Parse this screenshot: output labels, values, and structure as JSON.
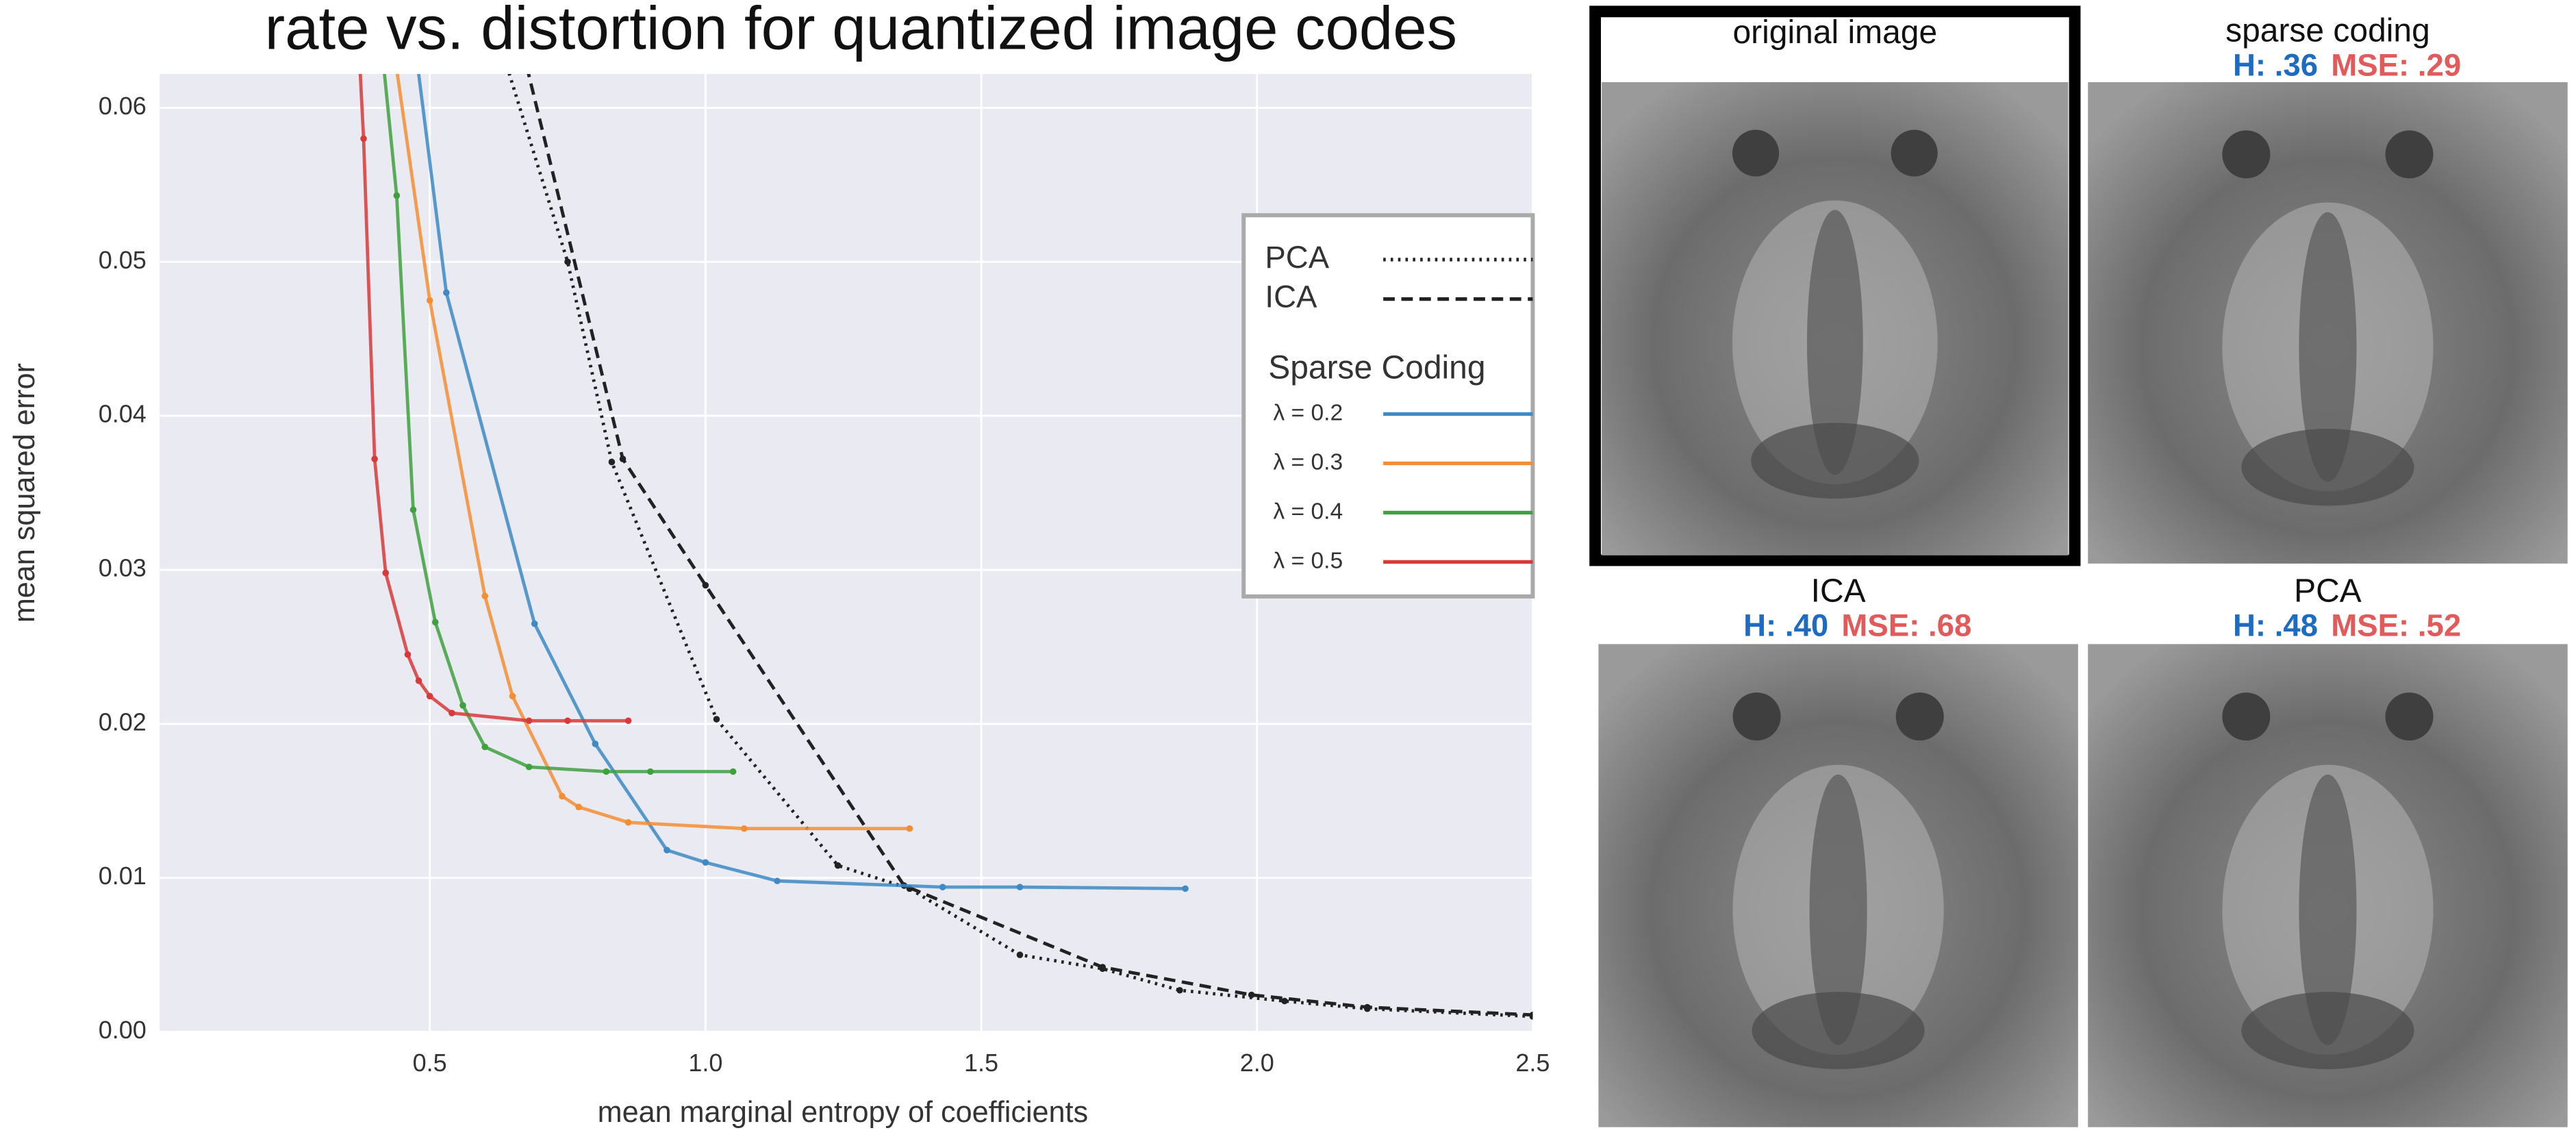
{
  "chart_data": {
    "type": "line",
    "title": "rate vs. distortion for quantized image codes",
    "xlabel": "mean marginal entropy of coefficients",
    "ylabel": "mean squared error",
    "xlim": [
      0.01,
      2.5
    ],
    "ylim": [
      0,
      0.0622
    ],
    "xticks": [
      0.5,
      {
        "value": 1,
        "label": "1.0"
      },
      1.5,
      {
        "value": 2,
        "label": "2.0"
      },
      2.5
    ],
    "yticks": [
      {
        "value": 0,
        "label": "0.00"
      },
      0.01,
      0.02,
      0.03,
      0.04,
      0.05,
      0.06
    ],
    "grid": true,
    "background": "#eaeaf2",
    "legend": "right",
    "legend_subtitle": "Sparse Coding",
    "series": [
      {
        "name": "PCA",
        "color": "#222222",
        "style": "dotted",
        "x": [
          0.62,
          0.75,
          0.83,
          1.02,
          1.24,
          1.37,
          1.57,
          1.72,
          1.86,
          2.05,
          2.2,
          2.5
        ],
        "values": [
          0.065,
          0.05,
          0.037,
          0.0203,
          0.0108,
          0.0093,
          0.005,
          0.0041,
          0.0027,
          0.002,
          0.0015,
          0.001
        ]
      },
      {
        "name": "ICA",
        "color": "#222222",
        "style": "dashed",
        "x": [
          0.66,
          0.85,
          1.0,
          1.36,
          1.72,
          1.99,
          2.2,
          2.5
        ],
        "values": [
          0.065,
          0.0372,
          0.029,
          0.0095,
          0.0042,
          0.0024,
          0.0016,
          0.0011
        ]
      },
      {
        "name": "λ = 0.2",
        "color": "#3d8ac4",
        "style": "solid",
        "x": [
          0.47,
          0.53,
          0.69,
          0.8,
          0.93,
          1.0,
          1.13,
          1.43,
          1.57,
          1.87
        ],
        "values": [
          0.065,
          0.048,
          0.0265,
          0.0187,
          0.0118,
          0.011,
          0.0098,
          0.0094,
          0.0094,
          0.0093
        ]
      },
      {
        "name": "λ = 0.3",
        "color": "#f58d32",
        "style": "solid",
        "x": [
          0.43,
          0.5,
          0.6,
          0.65,
          0.74,
          0.77,
          0.86,
          1.07,
          1.37
        ],
        "values": [
          0.065,
          0.0475,
          0.0283,
          0.0218,
          0.0153,
          0.0146,
          0.0136,
          0.0132,
          0.0132
        ]
      },
      {
        "name": "λ = 0.4",
        "color": "#3ea13e",
        "style": "solid",
        "x": [
          0.41,
          0.44,
          0.47,
          0.51,
          0.56,
          0.6,
          0.68,
          0.82,
          0.9,
          1.05
        ],
        "values": [
          0.065,
          0.0543,
          0.0339,
          0.0266,
          0.0212,
          0.0185,
          0.0172,
          0.0169,
          0.0169,
          0.0169
        ]
      },
      {
        "name": "λ = 0.5",
        "color": "#d83a3a",
        "style": "solid",
        "x": [
          0.37,
          0.38,
          0.4,
          0.42,
          0.46,
          0.48,
          0.5,
          0.54,
          0.68,
          0.75,
          0.86
        ],
        "values": [
          0.065,
          0.058,
          0.0372,
          0.0298,
          0.0245,
          0.0228,
          0.0218,
          0.0207,
          0.0202,
          0.0202,
          0.0202
        ]
      }
    ]
  },
  "panels": [
    {
      "title": "original image"
    },
    {
      "title": "sparse coding",
      "entropy": "H: .36",
      "mse": "MSE: .29"
    },
    {
      "title": "ICA",
      "entropy": "H: .40",
      "mse": "MSE: .68"
    },
    {
      "title": "PCA",
      "entropy": "H: .48",
      "mse": "MSE: .52"
    }
  ]
}
